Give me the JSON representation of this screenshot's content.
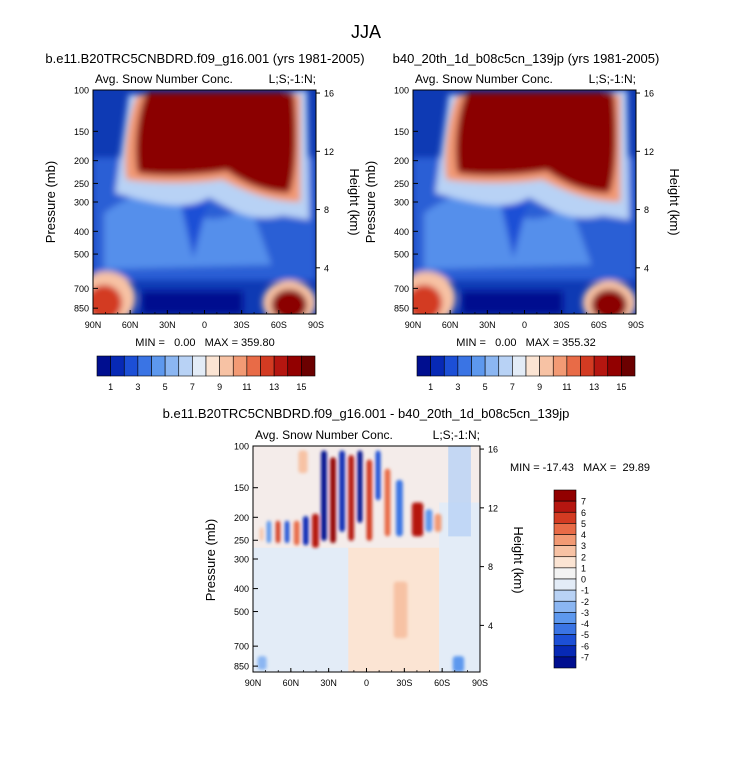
{
  "chart_data": {
    "type": "heatmap",
    "title": "JJA",
    "shared_axes": {
      "pressure_ticks_mb": [
        100,
        150,
        200,
        250,
        300,
        400,
        500,
        700,
        850
      ],
      "pressure_range_mb": [
        100,
        900
      ],
      "height_ticks_km": [
        4,
        8,
        12,
        16
      ],
      "lat_ticks": [
        "90N",
        "60N",
        "30N",
        "0",
        "30S",
        "60S",
        "90S"
      ],
      "ylabel": "Pressure (mb)",
      "ylabel_right": "Height (km)"
    },
    "panels": [
      {
        "id": "model_a",
        "title": "b.e11.B20TRC5CNBDRD.f09_g16.001 (yrs 1981-2005)",
        "left_label": "Avg. Snow Number Conc.",
        "right_label": "L;S;-1:N;",
        "stats": "MIN =   0.00   MAX = 359.80",
        "min": 0.0,
        "max": 359.8,
        "colorbar": {
          "levels": [
            1,
            2,
            3,
            4,
            5,
            6,
            7,
            8,
            9,
            10,
            11,
            12,
            13,
            14,
            15
          ],
          "labels": [
            "1",
            "3",
            "5",
            "7",
            "9",
            "11",
            "13",
            "15"
          ],
          "colors": [
            "#000e8f",
            "#0729b5",
            "#1c4fd6",
            "#3a74e4",
            "#5d98ee",
            "#8bb6f2",
            "#b8d2f5",
            "#e3ecf7",
            "#fbe4d3",
            "#f7c2a4",
            "#f29a74",
            "#e86b47",
            "#d33b22",
            "#b51610",
            "#920000",
            "#6b0000"
          ]
        }
      },
      {
        "id": "model_b",
        "title": "b40_20th_1d_b08c5cn_139jp (yrs 1981-2005)",
        "left_label": "Avg. Snow Number Conc.",
        "right_label": "L;S;-1:N;",
        "stats": "MIN =   0.00   MAX = 355.32",
        "min": 0.0,
        "max": 355.32,
        "colorbar": {
          "levels": [
            1,
            2,
            3,
            4,
            5,
            6,
            7,
            8,
            9,
            10,
            11,
            12,
            13,
            14,
            15
          ],
          "labels": [
            "1",
            "3",
            "5",
            "7",
            "9",
            "11",
            "13",
            "15"
          ],
          "colors": [
            "#000e8f",
            "#0729b5",
            "#1c4fd6",
            "#3a74e4",
            "#5d98ee",
            "#8bb6f2",
            "#b8d2f5",
            "#e3ecf7",
            "#fbe4d3",
            "#f7c2a4",
            "#f29a74",
            "#e86b47",
            "#d33b22",
            "#b51610",
            "#920000",
            "#6b0000"
          ]
        }
      },
      {
        "id": "difference",
        "title": "b.e11.B20TRC5CNBDRD.f09_g16.001 - b40_20th_1d_b08c5cn_139jp",
        "left_label": "Avg. Snow Number Conc.",
        "right_label": "L;S;-1:N;",
        "stats": "MIN = -17.43   MAX =  29.89",
        "min": -17.43,
        "max": 29.89,
        "colorbar": {
          "labels": [
            "7",
            "6",
            "5",
            "4",
            "3",
            "2",
            "1",
            "0",
            "-1",
            "-2",
            "-3",
            "-4",
            "-5",
            "-6",
            "-7"
          ],
          "colors": [
            "#920000",
            "#b51610",
            "#d33b22",
            "#e86b47",
            "#f29a74",
            "#f7c2a4",
            "#fbe4d3",
            "#f3f3f3",
            "#e3ecf7",
            "#b8d2f5",
            "#8bb6f2",
            "#5d98ee",
            "#3a74e4",
            "#1c4fd6",
            "#0729b5",
            "#000e8f"
          ]
        }
      }
    ]
  }
}
